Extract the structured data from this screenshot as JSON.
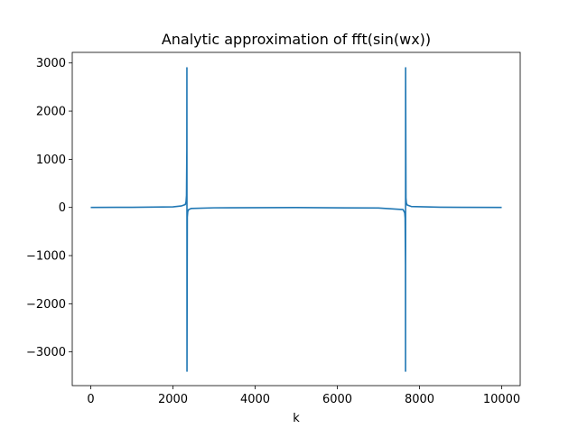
{
  "chart_data": {
    "type": "line",
    "title": "Analytic approximation of fft(sin(wx))",
    "xlabel": "k",
    "ylabel": "",
    "xlim": [
      -450,
      10450
    ],
    "ylim": [
      -3700,
      3220
    ],
    "xticks": [
      0,
      2000,
      4000,
      6000,
      8000,
      10000
    ],
    "yticks": [
      -3000,
      -2000,
      -1000,
      0,
      1000,
      2000,
      3000
    ],
    "grid": false,
    "line_color": "#1f77b4",
    "series": [
      {
        "name": "",
        "x": [
          0,
          1000,
          2000,
          2200,
          2300,
          2320,
          2330,
          2338,
          2340,
          2342,
          2350,
          2360,
          2380,
          2450,
          3000,
          5000,
          7000,
          7600,
          7640,
          7650,
          7658,
          7660,
          7662,
          7670,
          7680,
          7700,
          7800,
          8500,
          10000
        ],
        "y": [
          0,
          3,
          12,
          30,
          60,
          120,
          250,
          1200,
          2900,
          -3400,
          -200,
          -90,
          -45,
          -20,
          -8,
          -3,
          -12,
          -45,
          -110,
          -220,
          -1200,
          -3400,
          2900,
          200,
          95,
          50,
          20,
          5,
          0
        ]
      }
    ]
  }
}
